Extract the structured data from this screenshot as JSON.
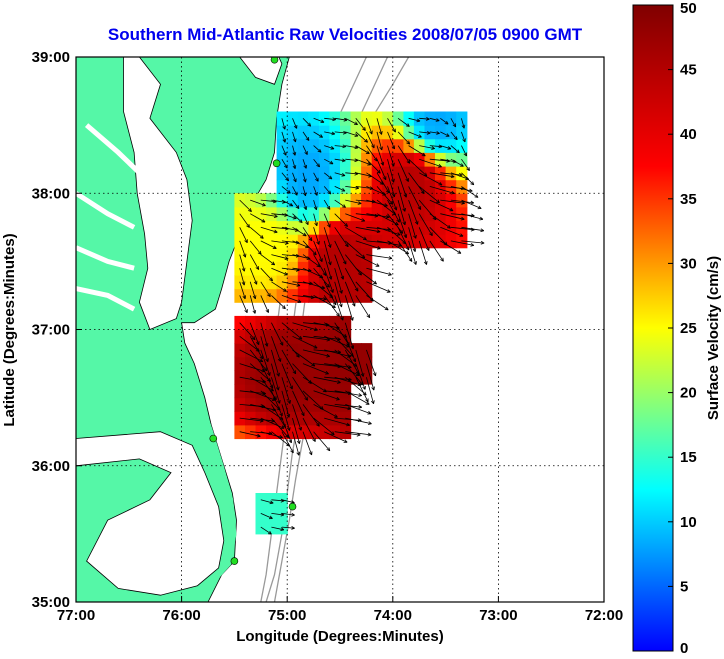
{
  "title": "Southern Mid-Atlantic Raw Velocities 2008/07/05 0900 GMT",
  "colors": {
    "title": "#0000ee",
    "land": "#55f7a7",
    "bathymetry": "#999999",
    "vectors": "#000000",
    "station": "#22dd22"
  },
  "map": {
    "xlabel": "Longitude (Degrees:Minutes)",
    "ylabel": "Latitude (Degrees:Minutes)",
    "lon_range": [
      -77,
      -72
    ],
    "lat_range": [
      35,
      39
    ],
    "x_ticks": [
      {
        "value": -77,
        "label": "77:00"
      },
      {
        "value": -76,
        "label": "76:00"
      },
      {
        "value": -75,
        "label": "75:00"
      },
      {
        "value": -74,
        "label": "74:00"
      },
      {
        "value": -73,
        "label": "73:00"
      },
      {
        "value": -72,
        "label": "72:00"
      }
    ],
    "y_ticks": [
      {
        "value": 35,
        "label": "35:00"
      },
      {
        "value": 36,
        "label": "36:00"
      },
      {
        "value": 37,
        "label": "37:00"
      },
      {
        "value": 38,
        "label": "38:00"
      },
      {
        "value": 39,
        "label": "39:00"
      }
    ],
    "grid": "dotted",
    "stations": [
      {
        "lon": -75.12,
        "lat": 38.98
      },
      {
        "lon": -75.1,
        "lat": 38.22
      },
      {
        "lon": -75.7,
        "lat": 36.2
      },
      {
        "lon": -75.5,
        "lat": 35.3
      },
      {
        "lon": -74.95,
        "lat": 35.7
      }
    ]
  },
  "colorbar": {
    "label": "Surface Velocity (cm/s)",
    "min": 0,
    "max": 50,
    "ticks": [
      {
        "value": 0,
        "label": "0"
      },
      {
        "value": 5,
        "label": "5"
      },
      {
        "value": 10,
        "label": "10"
      },
      {
        "value": 15,
        "label": "15"
      },
      {
        "value": 20,
        "label": "20"
      },
      {
        "value": 25,
        "label": "25"
      },
      {
        "value": 30,
        "label": "30"
      },
      {
        "value": 35,
        "label": "35"
      },
      {
        "value": 40,
        "label": "40"
      },
      {
        "value": 45,
        "label": "45"
      },
      {
        "value": 50,
        "label": "50"
      }
    ]
  },
  "velocity_field": {
    "units": "cm/s",
    "grid_step_deg": 0.1,
    "regions": [
      {
        "lon_min": -75.5,
        "lon_max": -74.2,
        "lat_min": 37.2,
        "lat_max": 38.0
      },
      {
        "lon_min": -75.1,
        "lon_max": -73.3,
        "lat_min": 37.6,
        "lat_max": 38.6
      },
      {
        "lon_min": -75.5,
        "lon_max": -74.4,
        "lat_min": 36.2,
        "lat_max": 37.1
      },
      {
        "lon_min": -74.6,
        "lon_max": -74.2,
        "lat_min": 36.6,
        "lat_max": 36.9
      },
      {
        "lon_min": -75.3,
        "lon_max": -75.0,
        "lat_min": 35.5,
        "lat_max": 35.8
      }
    ],
    "speed_centers": [
      {
        "lon": -74.8,
        "lat": 38.1,
        "speed": 8
      },
      {
        "lon": -73.6,
        "lat": 38.5,
        "speed": 8
      },
      {
        "lon": -75.2,
        "lat": 37.6,
        "speed": 25
      },
      {
        "lon": -74.5,
        "lat": 37.5,
        "speed": 45
      },
      {
        "lon": -73.8,
        "lat": 38.1,
        "speed": 45
      },
      {
        "lon": -75.0,
        "lat": 36.7,
        "speed": 48
      },
      {
        "lon": -74.4,
        "lat": 36.8,
        "speed": 48
      },
      {
        "lon": -75.15,
        "lat": 35.65,
        "speed": 15
      }
    ]
  }
}
